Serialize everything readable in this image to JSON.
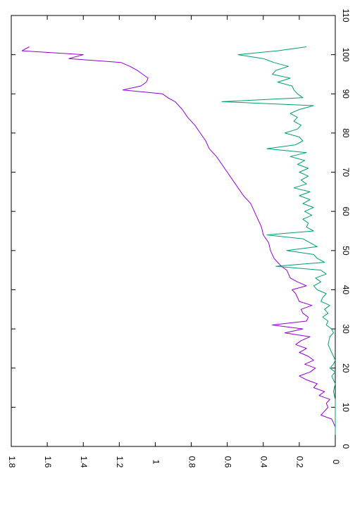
{
  "chart_data": {
    "type": "line",
    "orientation": "rotated-90-clockwise",
    "title": "",
    "xlabel": "",
    "ylabel": "",
    "xlim": [
      0,
      110
    ],
    "ylim": [
      0,
      1.8
    ],
    "x_ticks": [
      "0",
      "10",
      "20",
      "30",
      "40",
      "50",
      "60",
      "70",
      "80",
      "90",
      "100",
      "110"
    ],
    "y_ticks": [
      "0",
      "0.2",
      "0.4",
      "0.6",
      "0.8",
      "1",
      "1.2",
      "1.4",
      "1.6",
      "1.8"
    ],
    "grid": false,
    "legend": "none",
    "series": [
      {
        "color": "#9400d3",
        "points": [
          [
            3,
            0.0
          ],
          [
            5,
            0.0
          ],
          [
            6,
            0.01
          ],
          [
            7,
            0.02
          ],
          [
            8,
            0.08
          ],
          [
            9,
            0.06
          ],
          [
            10,
            0.04
          ],
          [
            11,
            0.05
          ],
          [
            12,
            0.03
          ],
          [
            13,
            0.09
          ],
          [
            14,
            0.06
          ],
          [
            15,
            0.12
          ],
          [
            16,
            0.1
          ],
          [
            17,
            0.16
          ],
          [
            18,
            0.2
          ],
          [
            19,
            0.14
          ],
          [
            20,
            0.11
          ],
          [
            21,
            0.17
          ],
          [
            22,
            0.12
          ],
          [
            23,
            0.15
          ],
          [
            24,
            0.2
          ],
          [
            25,
            0.16
          ],
          [
            26,
            0.22
          ],
          [
            27,
            0.19
          ],
          [
            28,
            0.14
          ],
          [
            29,
            0.28
          ],
          [
            30,
            0.18
          ],
          [
            31,
            0.35
          ],
          [
            32,
            0.16
          ],
          [
            33,
            0.15
          ],
          [
            34,
            0.18
          ],
          [
            35,
            0.19
          ],
          [
            36,
            0.13
          ],
          [
            37,
            0.2
          ],
          [
            38,
            0.21
          ],
          [
            39,
            0.22
          ],
          [
            40,
            0.24
          ],
          [
            41,
            0.16
          ],
          [
            42,
            0.21
          ],
          [
            43,
            0.25
          ],
          [
            44,
            0.26
          ],
          [
            45,
            0.27
          ],
          [
            46,
            0.3
          ],
          [
            47,
            0.32
          ],
          [
            48,
            0.34
          ],
          [
            50,
            0.36
          ],
          [
            52,
            0.37
          ],
          [
            54,
            0.4
          ],
          [
            56,
            0.41
          ],
          [
            58,
            0.43
          ],
          [
            60,
            0.45
          ],
          [
            62,
            0.47
          ],
          [
            64,
            0.51
          ],
          [
            66,
            0.54
          ],
          [
            68,
            0.57
          ],
          [
            70,
            0.6
          ],
          [
            72,
            0.63
          ],
          [
            74,
            0.66
          ],
          [
            76,
            0.7
          ],
          [
            78,
            0.72
          ],
          [
            80,
            0.75
          ],
          [
            82,
            0.78
          ],
          [
            84,
            0.82
          ],
          [
            86,
            0.85
          ],
          [
            88,
            0.89
          ],
          [
            89,
            0.93
          ],
          [
            90,
            0.96
          ],
          [
            91,
            1.18
          ],
          [
            92,
            1.08
          ],
          [
            93,
            1.05
          ],
          [
            94,
            1.04
          ],
          [
            95,
            1.07
          ],
          [
            96,
            1.1
          ],
          [
            97,
            1.14
          ],
          [
            98,
            1.19
          ],
          [
            99,
            1.48
          ],
          [
            100,
            1.4
          ],
          [
            101,
            1.74
          ],
          [
            102,
            1.7
          ]
        ]
      },
      {
        "color": "#009e73",
        "points": [
          [
            3,
            0.0
          ],
          [
            5,
            0.0
          ],
          [
            8,
            0.0
          ],
          [
            10,
            0.0
          ],
          [
            12,
            0.0
          ],
          [
            14,
            0.01
          ],
          [
            16,
            0.0
          ],
          [
            18,
            0.02
          ],
          [
            19,
            0.0
          ],
          [
            20,
            0.03
          ],
          [
            21,
            0.01
          ],
          [
            22,
            0.0
          ],
          [
            24,
            0.02
          ],
          [
            26,
            0.04
          ],
          [
            28,
            0.03
          ],
          [
            29,
            0.01
          ],
          [
            30,
            0.02
          ],
          [
            31,
            0.05
          ],
          [
            32,
            0.04
          ],
          [
            33,
            0.07
          ],
          [
            34,
            0.04
          ],
          [
            35,
            0.06
          ],
          [
            36,
            0.03
          ],
          [
            37,
            0.08
          ],
          [
            38,
            0.07
          ],
          [
            39,
            0.05
          ],
          [
            40,
            0.1
          ],
          [
            41,
            0.12
          ],
          [
            42,
            0.08
          ],
          [
            43,
            0.11
          ],
          [
            44,
            0.05
          ],
          [
            45,
            0.08
          ],
          [
            46,
            0.33
          ],
          [
            47,
            0.06
          ],
          [
            48,
            0.1
          ],
          [
            49,
            0.12
          ],
          [
            50,
            0.27
          ],
          [
            51,
            0.1
          ],
          [
            52,
            0.14
          ],
          [
            53,
            0.18
          ],
          [
            54,
            0.38
          ],
          [
            55,
            0.12
          ],
          [
            56,
            0.16
          ],
          [
            57,
            0.15
          ],
          [
            58,
            0.18
          ],
          [
            59,
            0.13
          ],
          [
            60,
            0.17
          ],
          [
            61,
            0.12
          ],
          [
            62,
            0.18
          ],
          [
            63,
            0.14
          ],
          [
            64,
            0.2
          ],
          [
            65,
            0.14
          ],
          [
            66,
            0.23
          ],
          [
            67,
            0.16
          ],
          [
            68,
            0.19
          ],
          [
            69,
            0.15
          ],
          [
            70,
            0.2
          ],
          [
            71,
            0.15
          ],
          [
            72,
            0.21
          ],
          [
            73,
            0.17
          ],
          [
            74,
            0.25
          ],
          [
            75,
            0.16
          ],
          [
            76,
            0.38
          ],
          [
            77,
            0.22
          ],
          [
            78,
            0.18
          ],
          [
            79,
            0.2
          ],
          [
            80,
            0.28
          ],
          [
            81,
            0.21
          ],
          [
            82,
            0.19
          ],
          [
            83,
            0.23
          ],
          [
            84,
            0.21
          ],
          [
            85,
            0.25
          ],
          [
            86,
            0.2
          ],
          [
            87,
            0.12
          ],
          [
            88,
            0.63
          ],
          [
            89,
            0.18
          ],
          [
            90,
            0.21
          ],
          [
            91,
            0.23
          ],
          [
            92,
            0.24
          ],
          [
            93,
            0.32
          ],
          [
            94,
            0.25
          ],
          [
            95,
            0.35
          ],
          [
            96,
            0.33
          ],
          [
            97,
            0.26
          ],
          [
            98,
            0.34
          ],
          [
            99,
            0.4
          ],
          [
            100,
            0.54
          ],
          [
            101,
            0.32
          ],
          [
            102,
            0.16
          ]
        ]
      }
    ]
  }
}
